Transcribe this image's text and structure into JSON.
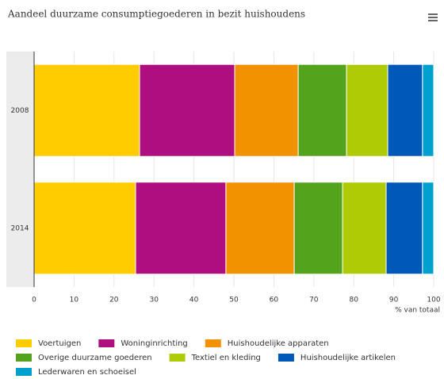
{
  "chart_data": {
    "type": "stacked-barh",
    "title": "Aandeel duurzame consumptiegoederen in bezit huishoudens",
    "xlabel": "% van totaal",
    "categories": [
      "2008",
      "2014"
    ],
    "series": [
      {
        "name": "Voertuigen",
        "color": "#ffcc00",
        "values": [
          26.4,
          25.4
        ]
      },
      {
        "name": "Woninginrichting",
        "color": "#af0e80",
        "values": [
          23.8,
          22.6
        ]
      },
      {
        "name": "Huishoudelijke apparaten",
        "color": "#f39200",
        "values": [
          15.9,
          17.1
        ]
      },
      {
        "name": "Overige duurzame goederen",
        "color": "#53a31d",
        "values": [
          12.1,
          12.1
        ]
      },
      {
        "name": "Textiel en kleding",
        "color": "#afcb05",
        "values": [
          10.3,
          10.9
        ]
      },
      {
        "name": "Huishoudelijke artikelen",
        "color": "#0058b8",
        "values": [
          8.7,
          9.1
        ]
      },
      {
        "name": "Lederwaren en schoeisel",
        "color": "#00a1cd",
        "values": [
          2.8,
          2.8
        ]
      }
    ],
    "xlim": [
      0,
      100
    ],
    "xticks": [
      0,
      10,
      20,
      30,
      40,
      50,
      60,
      70,
      80,
      90,
      100
    ],
    "grid": true
  }
}
